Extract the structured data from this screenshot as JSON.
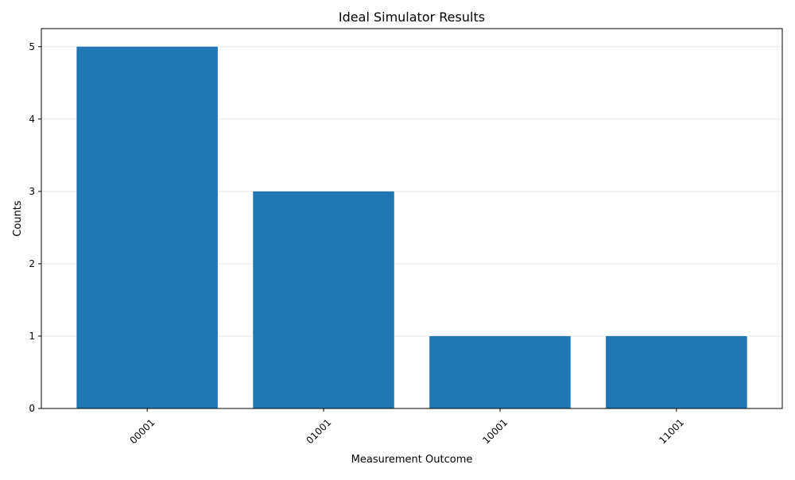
{
  "chart_data": {
    "type": "bar",
    "title": "Ideal Simulator Results",
    "xlabel": "Measurement Outcome",
    "ylabel": "Counts",
    "categories": [
      "00001",
      "01001",
      "10001",
      "11001"
    ],
    "values": [
      5,
      3,
      1,
      1
    ],
    "ylim": [
      0,
      5.25
    ],
    "yticks": [
      0,
      1,
      2,
      3,
      4,
      5
    ],
    "grid": "y",
    "bar_color": "#1f77b4",
    "xtick_rotation": 45
  }
}
